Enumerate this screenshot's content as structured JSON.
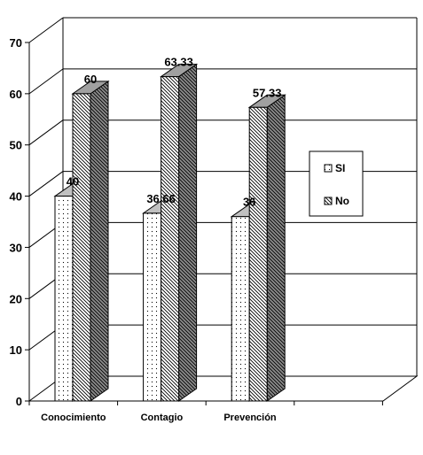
{
  "chart_data": {
    "type": "bar",
    "categories": [
      "Conocimiento",
      "Contagio",
      "Prevención"
    ],
    "series": [
      {
        "name": "SI",
        "values": [
          40,
          36.66,
          36
        ],
        "labels": [
          "40",
          "36.66",
          "36"
        ]
      },
      {
        "name": "No",
        "values": [
          60,
          63.33,
          57.33
        ],
        "labels": [
          "60",
          "63.33",
          "57.33"
        ]
      }
    ],
    "yticks": [
      "0",
      "10",
      "20",
      "30",
      "40",
      "50",
      "60",
      "70"
    ],
    "ylim": [
      0,
      70
    ],
    "grid": true,
    "legend_position": "right",
    "three_d": true
  }
}
